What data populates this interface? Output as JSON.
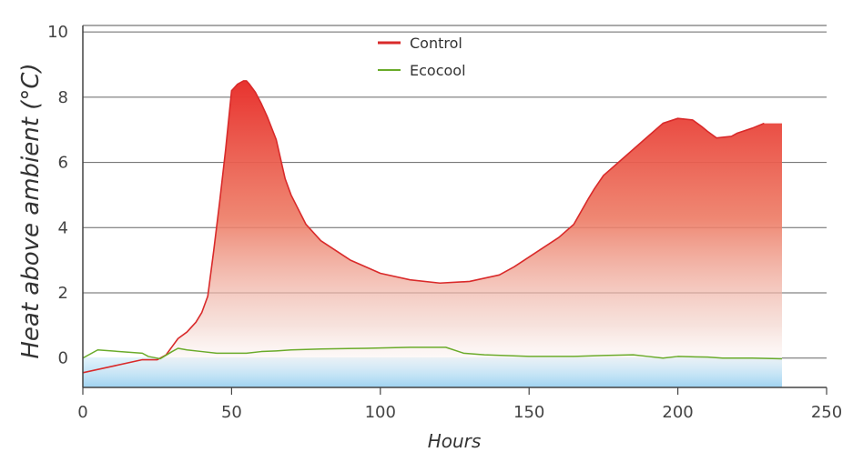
{
  "chart_data": {
    "type": "area",
    "title": "",
    "xlabel": "Hours",
    "ylabel": "Heat above ambient (°C)",
    "xlim": [
      0,
      250
    ],
    "ylim": [
      -0.9,
      10.2
    ],
    "x_ticks": [
      0,
      50,
      100,
      150,
      200,
      250
    ],
    "y_ticks": [
      0,
      2,
      4,
      6,
      8,
      10
    ],
    "grid": "horizontal",
    "legend_position": "top-center",
    "series": [
      {
        "name": "Control",
        "color": "#d92a2a",
        "fill": "gradient red to white",
        "x": [
          0,
          10,
          20,
          25,
          28,
          30,
          32,
          35,
          38,
          40,
          42,
          44,
          46,
          48,
          50,
          52,
          54,
          55,
          56,
          58,
          60,
          62,
          65,
          68,
          70,
          75,
          80,
          90,
          100,
          110,
          120,
          130,
          140,
          145,
          150,
          160,
          165,
          170,
          172,
          175,
          180,
          185,
          190,
          195,
          200,
          205,
          208,
          210,
          213,
          218,
          220,
          225,
          229
        ],
        "y": [
          -0.45,
          -0.25,
          -0.05,
          -0.05,
          0.1,
          0.35,
          0.6,
          0.8,
          1.1,
          1.4,
          1.9,
          3.3,
          4.8,
          6.4,
          8.2,
          8.4,
          8.5,
          8.5,
          8.4,
          8.15,
          7.8,
          7.4,
          6.7,
          5.5,
          5.0,
          4.1,
          3.6,
          3.0,
          2.6,
          2.4,
          2.3,
          2.35,
          2.55,
          2.8,
          3.1,
          3.7,
          4.1,
          4.9,
          5.2,
          5.6,
          6.0,
          6.4,
          6.8,
          7.2,
          7.35,
          7.3,
          7.1,
          6.95,
          6.75,
          6.8,
          6.9,
          7.05,
          7.2
        ],
        "fill_until_x": 235
      },
      {
        "name": "Ecocool",
        "color": "#6aab2a",
        "x": [
          0,
          5,
          20,
          22,
          26,
          30,
          32,
          35,
          40,
          45,
          55,
          60,
          65,
          70,
          80,
          95,
          110,
          122,
          128,
          135,
          150,
          165,
          175,
          185,
          190,
          195,
          200,
          210,
          215,
          225,
          235
        ],
        "y": [
          0.0,
          0.25,
          0.15,
          0.05,
          -0.02,
          0.2,
          0.3,
          0.25,
          0.2,
          0.15,
          0.15,
          0.2,
          0.22,
          0.25,
          0.28,
          0.3,
          0.33,
          0.33,
          0.15,
          0.1,
          0.05,
          0.05,
          0.08,
          0.1,
          0.05,
          0.0,
          0.05,
          0.03,
          0.0,
          0.0,
          -0.02
        ]
      }
    ]
  }
}
